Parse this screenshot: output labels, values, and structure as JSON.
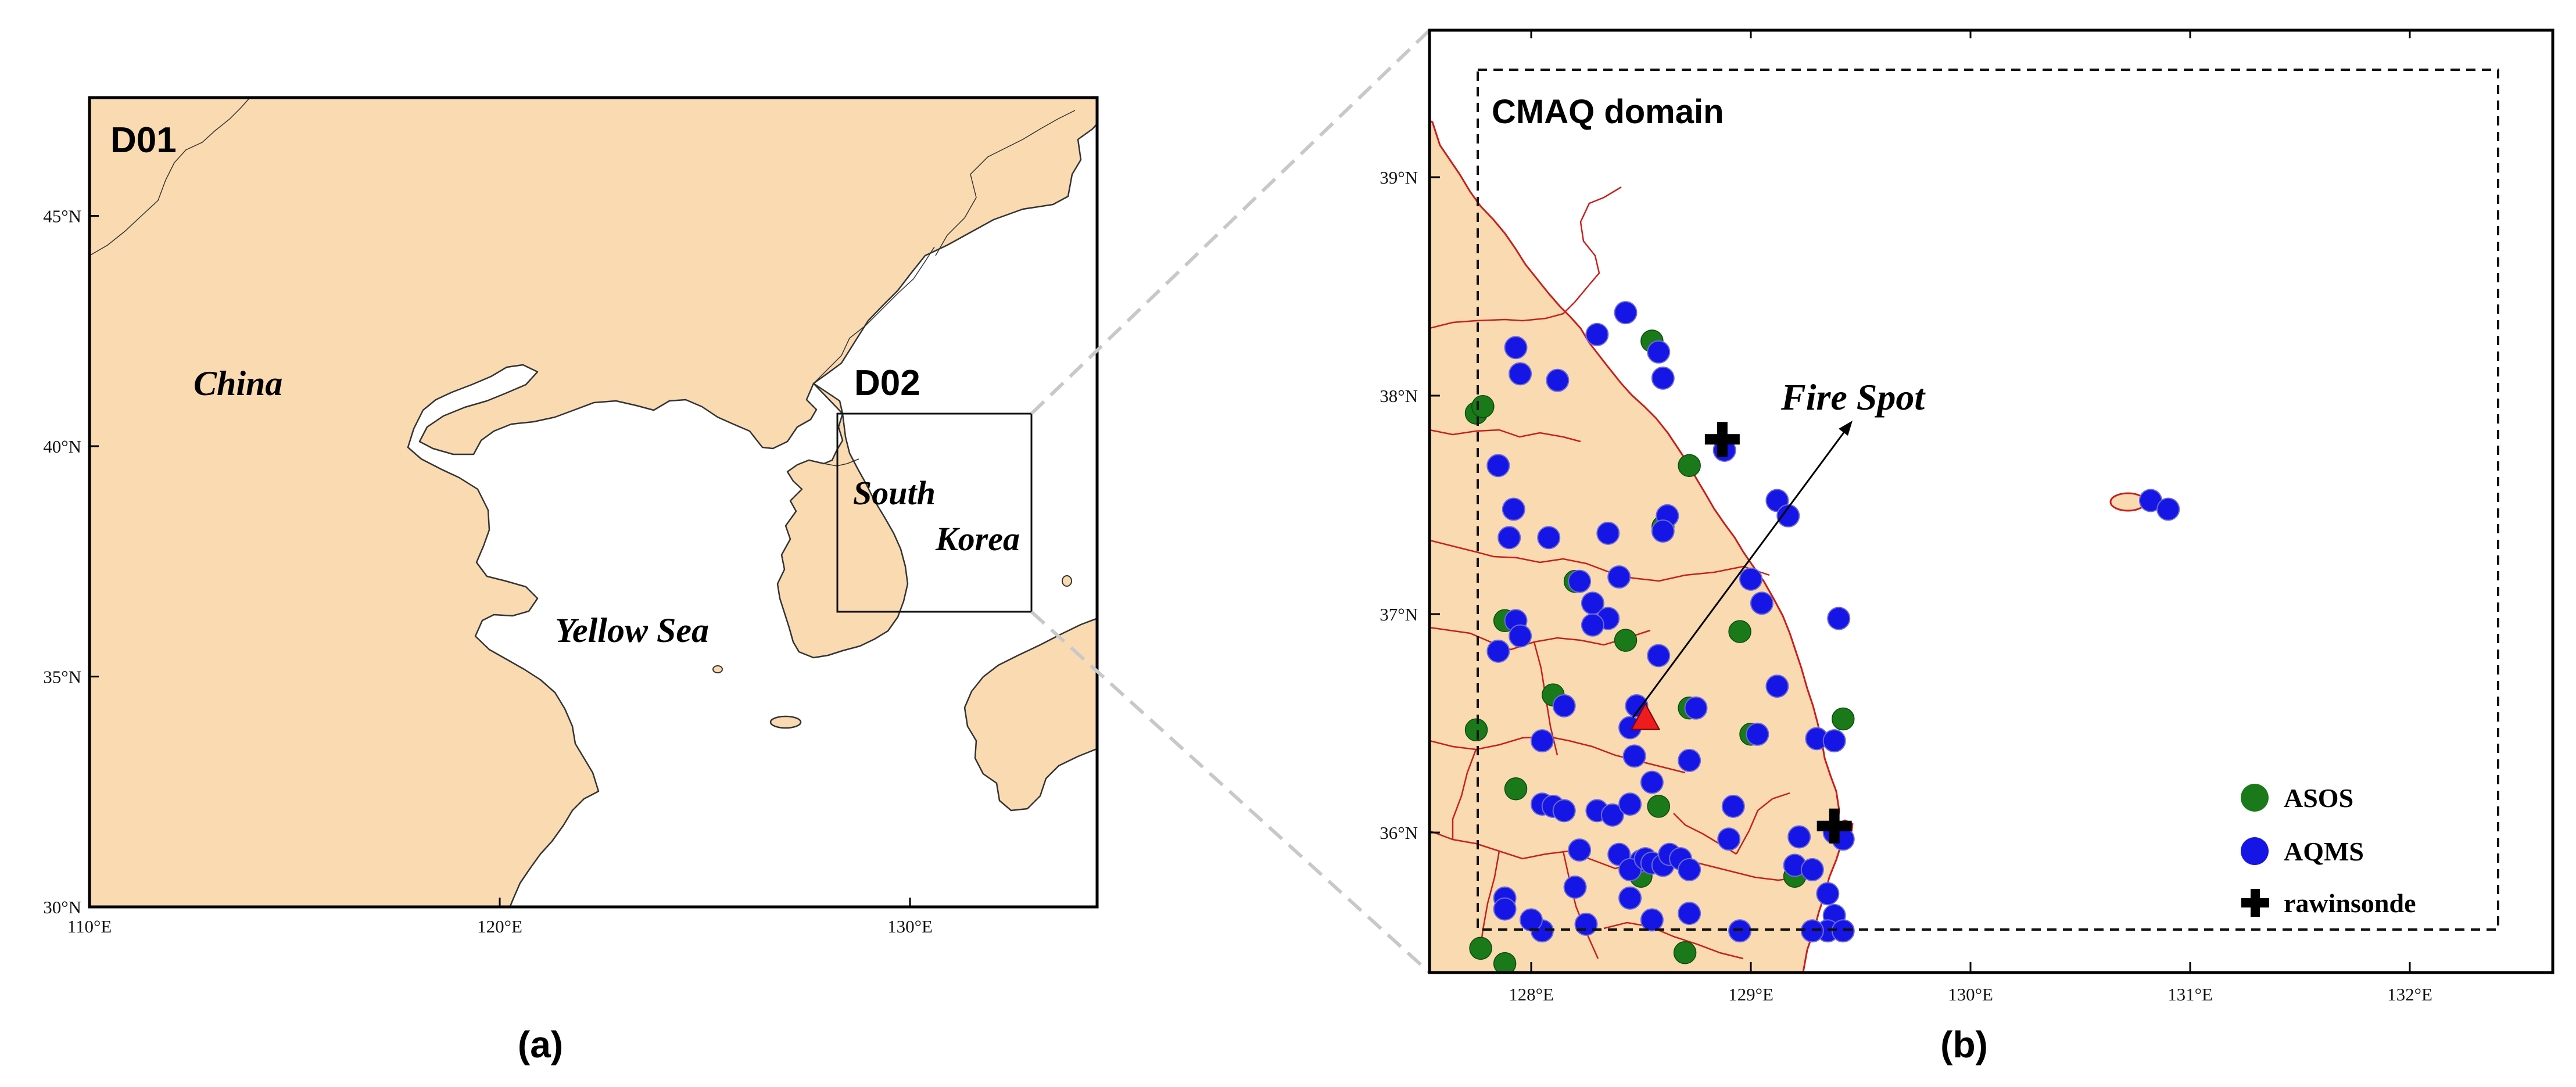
{
  "panel_a": {
    "domain_label": "D01",
    "subdomain_label": "D02",
    "country_china": "China",
    "sea_label": "Yellow Sea",
    "country_korea_line1": "South",
    "country_korea_line2": "Korea",
    "y_ticks": [
      "45°N",
      "40°N",
      "35°N",
      "30°N"
    ],
    "x_ticks": [
      "110°E",
      "120°E",
      "130°E"
    ],
    "caption": "(a)"
  },
  "panel_b": {
    "domain_label": "CMAQ domain",
    "fire_label": "Fire Spot",
    "y_ticks": [
      "39°N",
      "38°N",
      "37°N",
      "36°N"
    ],
    "x_ticks": [
      "128°E",
      "129°E",
      "130°E",
      "131°E",
      "132°E"
    ],
    "caption": "(b)",
    "legend": [
      {
        "label": "ASOS",
        "color": "#1a7a1a",
        "symbol": "circle"
      },
      {
        "label": "AQMS",
        "color": "#1515e6",
        "symbol": "circle"
      },
      {
        "label": "rawinsonde",
        "color": "#000000",
        "symbol": "plus"
      }
    ]
  },
  "colors": {
    "land": "#f9dab1",
    "sea": "#ffffff",
    "province_border": "#c8201c",
    "fire_marker": "#ee1c1c",
    "zoom_connector": "#c8c8c8"
  },
  "map_data": {
    "asos_stations": [
      [
        127.75,
        37.92
      ],
      [
        127.78,
        37.95
      ],
      [
        128.55,
        38.25
      ],
      [
        128.72,
        37.68
      ],
      [
        128.6,
        37.4
      ],
      [
        128.95,
        36.92
      ],
      [
        127.75,
        36.47
      ],
      [
        127.88,
        36.97
      ],
      [
        128.1,
        36.63
      ],
      [
        128.2,
        37.15
      ],
      [
        128.72,
        36.57
      ],
      [
        128.43,
        36.88
      ],
      [
        127.93,
        36.2
      ],
      [
        129.0,
        36.45
      ],
      [
        129.42,
        36.52
      ],
      [
        127.77,
        35.47
      ],
      [
        127.88,
        35.4
      ],
      [
        128.7,
        35.45
      ],
      [
        129.2,
        35.8
      ],
      [
        128.5,
        35.8
      ],
      [
        128.58,
        36.12
      ]
    ],
    "aqms_stations": [
      [
        128.43,
        38.38
      ],
      [
        128.3,
        38.28
      ],
      [
        127.93,
        38.22
      ],
      [
        127.95,
        38.1
      ],
      [
        128.12,
        38.07
      ],
      [
        128.58,
        38.2
      ],
      [
        128.6,
        38.08
      ],
      [
        128.88,
        37.75
      ],
      [
        127.85,
        37.68
      ],
      [
        127.92,
        37.48
      ],
      [
        127.9,
        37.35
      ],
      [
        128.08,
        37.35
      ],
      [
        128.35,
        37.37
      ],
      [
        128.62,
        37.45
      ],
      [
        128.6,
        37.38
      ],
      [
        129.12,
        37.52
      ],
      [
        129.17,
        37.45
      ],
      [
        129.0,
        37.16
      ],
      [
        128.4,
        37.17
      ],
      [
        128.22,
        37.15
      ],
      [
        128.28,
        37.05
      ],
      [
        128.35,
        36.98
      ],
      [
        128.28,
        36.95
      ],
      [
        129.05,
        37.05
      ],
      [
        127.93,
        36.97
      ],
      [
        127.95,
        36.9
      ],
      [
        127.85,
        36.83
      ],
      [
        128.58,
        36.81
      ],
      [
        129.4,
        36.98
      ],
      [
        129.12,
        36.67
      ],
      [
        128.15,
        36.58
      ],
      [
        128.48,
        36.58
      ],
      [
        128.75,
        36.57
      ],
      [
        128.45,
        36.48
      ],
      [
        128.72,
        36.33
      ],
      [
        128.47,
        36.35
      ],
      [
        128.55,
        36.23
      ],
      [
        128.05,
        36.42
      ],
      [
        129.03,
        36.45
      ],
      [
        129.3,
        36.43
      ],
      [
        129.38,
        36.42
      ],
      [
        128.05,
        36.13
      ],
      [
        128.1,
        36.12
      ],
      [
        128.15,
        36.1
      ],
      [
        128.3,
        36.1
      ],
      [
        128.37,
        36.08
      ],
      [
        128.45,
        36.13
      ],
      [
        128.92,
        36.12
      ],
      [
        129.22,
        35.98
      ],
      [
        129.38,
        36.0
      ],
      [
        129.42,
        35.97
      ],
      [
        128.22,
        35.92
      ],
      [
        128.4,
        35.9
      ],
      [
        128.5,
        35.87
      ],
      [
        128.45,
        35.83
      ],
      [
        128.52,
        35.88
      ],
      [
        128.55,
        35.86
      ],
      [
        128.6,
        35.85
      ],
      [
        128.63,
        35.9
      ],
      [
        128.68,
        35.88
      ],
      [
        128.72,
        35.83
      ],
      [
        128.9,
        35.97
      ],
      [
        129.2,
        35.85
      ],
      [
        129.28,
        35.83
      ],
      [
        129.35,
        35.72
      ],
      [
        129.38,
        35.62
      ],
      [
        129.35,
        35.55
      ],
      [
        129.28,
        35.55
      ],
      [
        129.42,
        35.55
      ],
      [
        128.45,
        35.7
      ],
      [
        128.2,
        35.75
      ],
      [
        128.72,
        35.63
      ],
      [
        127.88,
        35.7
      ],
      [
        127.88,
        35.65
      ],
      [
        128.05,
        35.55
      ],
      [
        128.25,
        35.58
      ],
      [
        128.55,
        35.6
      ],
      [
        128.95,
        35.55
      ],
      [
        128.0,
        35.6
      ],
      [
        130.82,
        37.52
      ],
      [
        130.9,
        37.48
      ]
    ],
    "rawinsonde_stations": [
      [
        128.87,
        37.8
      ],
      [
        129.38,
        36.03
      ]
    ],
    "fire_spot": [
      128.52,
      36.52
    ]
  }
}
